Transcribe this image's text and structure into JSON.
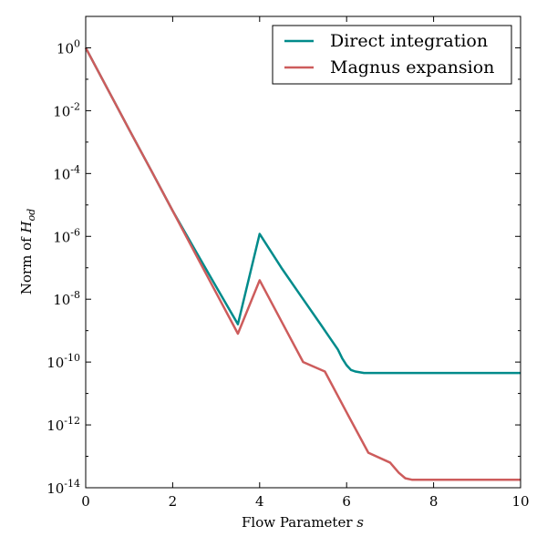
{
  "chart_data": {
    "type": "line",
    "title": "",
    "xlabel": "Flow Parameter",
    "xlabel_var": "s",
    "ylabel": "Norm of",
    "ylabel_var": "H",
    "ylabel_sub": "od",
    "xlim": [
      0,
      10
    ],
    "ylim_log10": [
      -14,
      1
    ],
    "yscale": "log",
    "grid": false,
    "legend_position": "top-right",
    "xticks": [
      0,
      2,
      4,
      6,
      8,
      10
    ],
    "yticks": [
      {
        "base": "10",
        "exp": "0",
        "value": 0
      },
      {
        "base": "10",
        "exp": "-2",
        "value": -2
      },
      {
        "base": "10",
        "exp": "-4",
        "value": -4
      },
      {
        "base": "10",
        "exp": "-6",
        "value": -6
      },
      {
        "base": "10",
        "exp": "-8",
        "value": -8
      },
      {
        "base": "10",
        "exp": "-10",
        "value": -10
      },
      {
        "base": "10",
        "exp": "-12",
        "value": -12
      },
      {
        "base": "10",
        "exp": "-14",
        "value": -14
      }
    ],
    "series": [
      {
        "name": "Direct integration",
        "color": "#008b8b",
        "x": [
          0,
          0.5,
          1,
          1.5,
          2,
          2.5,
          3,
          3.5,
          4,
          4.5,
          5,
          5.4,
          5.6,
          5.8,
          5.9,
          6.0,
          6.1,
          6.2,
          6.4,
          7,
          8,
          9,
          10
        ],
        "y": [
          1.0,
          0.05,
          0.0025,
          0.00013,
          6.5e-06,
          4e-07,
          2.5e-08,
          1.6e-09,
          1.2e-06,
          1e-07,
          1e-08,
          1.6e-09,
          6.3e-10,
          2.5e-10,
          1.3e-10,
          7.9e-11,
          5.6e-11,
          5e-11,
          4.5e-11,
          4.5e-11,
          4.5e-11,
          4.5e-11,
          4.5e-11
        ]
      },
      {
        "name": "Magnus expansion",
        "color": "#cd5c5c",
        "x": [
          0,
          0.5,
          1,
          1.5,
          2,
          2.5,
          3,
          3.5,
          4,
          4.5,
          5,
          5.5,
          6,
          6.5,
          7,
          7.2,
          7.35,
          7.5,
          7.7,
          8,
          9,
          10
        ],
        "y": [
          1.0,
          0.05,
          0.0025,
          0.00013,
          6.5e-06,
          3.2e-07,
          1.6e-08,
          8e-10,
          4e-08,
          2e-09,
          1e-10,
          5e-11,
          2.5e-12,
          1.3e-13,
          6.3e-14,
          3e-14,
          2e-14,
          1.8e-14,
          1.8e-14,
          1.8e-14,
          1.8e-14,
          1.8e-14
        ]
      }
    ]
  }
}
